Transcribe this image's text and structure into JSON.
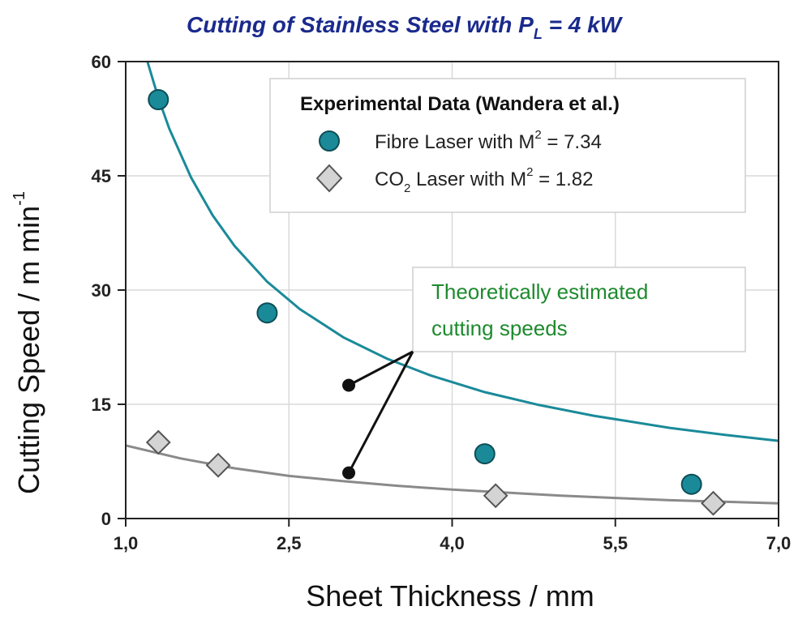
{
  "chart_data": {
    "type": "scatter",
    "title_main": "Cutting of Stainless Steel with P",
    "title_sub": "L",
    "title_tail": " = 4 kW",
    "xlabel": "Sheet Thickness / mm",
    "ylabel_main": "Cutting Speed / m min",
    "ylabel_sup": "-1",
    "xlim": [
      1.0,
      7.0
    ],
    "ylim": [
      0,
      60
    ],
    "x_ticks": [
      {
        "value": 1.0,
        "label": "1,0"
      },
      {
        "value": 2.5,
        "label": "2,5"
      },
      {
        "value": 4.0,
        "label": "4,0"
      },
      {
        "value": 5.5,
        "label": "5,5"
      },
      {
        "value": 7.0,
        "label": "7,0"
      }
    ],
    "y_ticks": [
      {
        "value": 0,
        "label": "0"
      },
      {
        "value": 15,
        "label": "15"
      },
      {
        "value": 30,
        "label": "30"
      },
      {
        "value": 45,
        "label": "45"
      },
      {
        "value": 60,
        "label": "60"
      }
    ],
    "grid": true,
    "legend": {
      "placement": "top-right",
      "title": "Experimental Data (Wandera et al.)",
      "items": [
        {
          "pre": "Fibre Laser with M",
          "sup": "2",
          "post": " = 7.34",
          "marker": "circle"
        },
        {
          "pre": "CO",
          "sub": "2",
          "mid": " Laser with M",
          "sup": "2",
          "post": " = 1.82",
          "marker": "diamond"
        }
      ]
    },
    "series": [
      {
        "marker": "circle",
        "color": "#1a8a99",
        "points": [
          [
            1.3,
            55
          ],
          [
            2.3,
            27
          ],
          [
            4.3,
            8.5
          ],
          [
            6.2,
            4.5
          ]
        ]
      },
      {
        "marker": "diamond",
        "color": "#d4d4d4",
        "points": [
          [
            1.3,
            10
          ],
          [
            1.85,
            7
          ],
          [
            4.4,
            3
          ],
          [
            6.4,
            2
          ]
        ]
      }
    ],
    "curves": [
      {
        "color": "#1a8a99",
        "points": [
          [
            1.2,
            60
          ],
          [
            1.3,
            55.2
          ],
          [
            1.4,
            51.2
          ],
          [
            1.6,
            44.8
          ],
          [
            1.8,
            39.8
          ],
          [
            2.0,
            35.8
          ],
          [
            2.3,
            31.1
          ],
          [
            2.6,
            27.5
          ],
          [
            3.0,
            23.8
          ],
          [
            3.4,
            21.0
          ],
          [
            3.8,
            18.8
          ],
          [
            4.3,
            16.6
          ],
          [
            4.8,
            14.9
          ],
          [
            5.3,
            13.5
          ],
          [
            6.0,
            11.9
          ],
          [
            6.5,
            11.0
          ],
          [
            7.0,
            10.2
          ]
        ]
      },
      {
        "color": "#8a8a8a",
        "points": [
          [
            1.0,
            9.6
          ],
          [
            1.5,
            7.9
          ],
          [
            2.0,
            6.6
          ],
          [
            2.5,
            5.6
          ],
          [
            3.0,
            4.9
          ],
          [
            3.5,
            4.3
          ],
          [
            4.0,
            3.8
          ],
          [
            4.5,
            3.4
          ],
          [
            5.0,
            3.0
          ],
          [
            5.5,
            2.7
          ],
          [
            6.0,
            2.4
          ],
          [
            6.5,
            2.2
          ],
          [
            7.0,
            2.0
          ]
        ]
      }
    ],
    "annotation": {
      "line1": "Theoretically estimated",
      "line2": "cutting speeds",
      "text_color": "#1e8a2e",
      "pointers": [
        [
          3.05,
          17.5
        ],
        [
          3.05,
          6
        ]
      ]
    }
  }
}
